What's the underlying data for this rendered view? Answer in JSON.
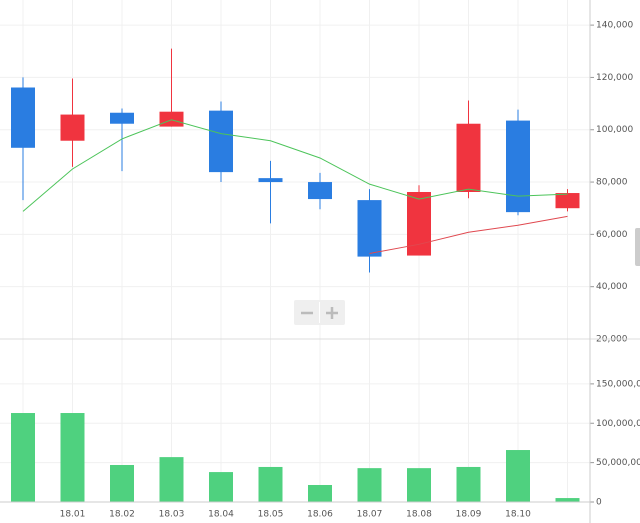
{
  "chart_data": [
    {
      "type": "candlestick",
      "categories": [
        null,
        "18.01",
        "18.02",
        "18.03",
        "18.04",
        "18.05",
        "18.06",
        "18.07",
        "18.08",
        "18.09",
        "18.10",
        null
      ],
      "open": [
        116150,
        95800,
        106500,
        101200,
        107300,
        81500,
        80000,
        73100,
        51900,
        76200,
        103500,
        70000
      ],
      "high": [
        120000,
        119600,
        108100,
        131000,
        110800,
        88100,
        83500,
        77300,
        78800,
        111200,
        107700,
        77300
      ],
      "low": [
        73100,
        85800,
        84200,
        101200,
        80000,
        64200,
        69600,
        45400,
        51900,
        73800,
        67300,
        68800
      ],
      "close": [
        93100,
        105800,
        102300,
        106900,
        83800,
        80000,
        73500,
        51500,
        76200,
        102300,
        68500,
        75800
      ],
      "up_color": "#f0343f",
      "down_color": "#2a7de1",
      "lines": [
        {
          "color": "#4cc45a",
          "values": [
            68800,
            85000,
            96500,
            103800,
            98500,
            95800,
            89200,
            79200,
            73500,
            77300,
            74600,
            75400
          ]
        },
        {
          "color": "#e0484f",
          "values": [
            null,
            null,
            null,
            null,
            null,
            null,
            null,
            52700,
            56200,
            60800,
            63500,
            66900
          ]
        }
      ],
      "ylim": [
        20000,
        149600
      ],
      "yticks": [
        {
          "value": 20000,
          "label": "20,000"
        },
        {
          "value": 40000,
          "label": "40,000"
        },
        {
          "value": 60000,
          "label": "60,000"
        },
        {
          "value": 80000,
          "label": "80,000"
        },
        {
          "value": 100000,
          "label": "100,000"
        },
        {
          "value": 120000,
          "label": "120,000"
        },
        {
          "value": 140000,
          "label": "140,000"
        }
      ],
      "grid": true
    },
    {
      "type": "bar",
      "values": [
        113000000,
        113000000,
        47000000,
        57000000,
        38000000,
        44500000,
        21600000,
        43000000,
        43000000,
        44500000,
        66000000,
        5000000
      ],
      "color": "#4fd17f",
      "ylim": [
        0,
        207000000
      ],
      "yticks": [
        0,
        {
          "value": 50000000,
          "label": "50,000,000"
        },
        {
          "value": 100000000,
          "label": "100,000,000"
        },
        {
          "value": 150000000,
          "label": "150,000,000"
        }
      ],
      "grid": true
    }
  ]
}
